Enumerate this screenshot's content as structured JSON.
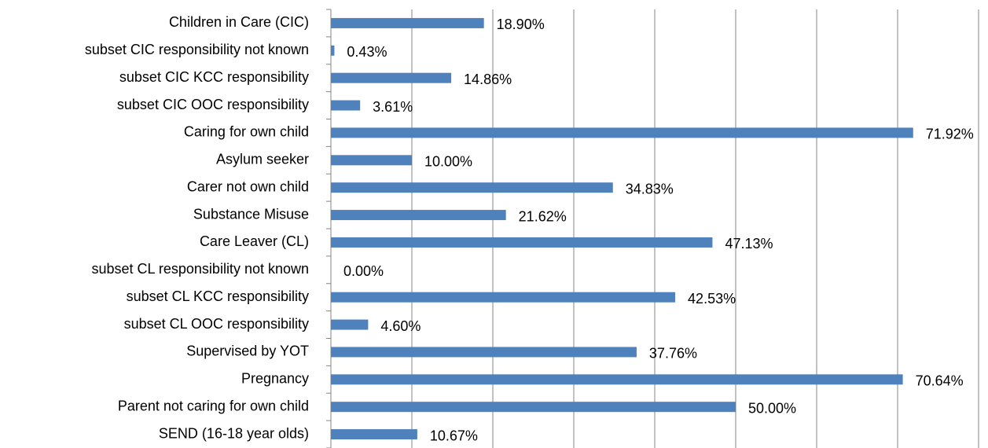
{
  "chart_data": {
    "type": "bar",
    "orientation": "horizontal",
    "categories": [
      "Children in Care (CIC)",
      "subset CIC responsibility not known",
      "subset CIC KCC responsibility",
      "subset CIC OOC responsibility",
      "Caring for own child",
      "Asylum seeker",
      "Carer not own child",
      "Substance Misuse",
      "Care Leaver (CL)",
      "subset CL responsibility not known",
      "subset CL KCC responsibility",
      "subset CL OOC responsibility",
      "Supervised by YOT",
      "Pregnancy",
      "Parent not caring for own child",
      "SEND (16-18 year olds)"
    ],
    "values": [
      18.9,
      0.43,
      14.86,
      3.61,
      71.92,
      10.0,
      34.83,
      21.62,
      47.13,
      0.0,
      42.53,
      4.6,
      37.76,
      70.64,
      50.0,
      10.67
    ],
    "value_labels": [
      "18.90%",
      "0.43%",
      "14.86%",
      "3.61%",
      "71.92%",
      "10.00%",
      "34.83%",
      "21.62%",
      "47.13%",
      "0.00%",
      "42.53%",
      "4.60%",
      "37.76%",
      "70.64%",
      "50.00%",
      "10.67%"
    ],
    "color": "#4f81bd",
    "xlim": [
      0,
      80
    ],
    "xticks": [
      0,
      10,
      20,
      30,
      40,
      50,
      60,
      70,
      80
    ],
    "grid": true
  }
}
